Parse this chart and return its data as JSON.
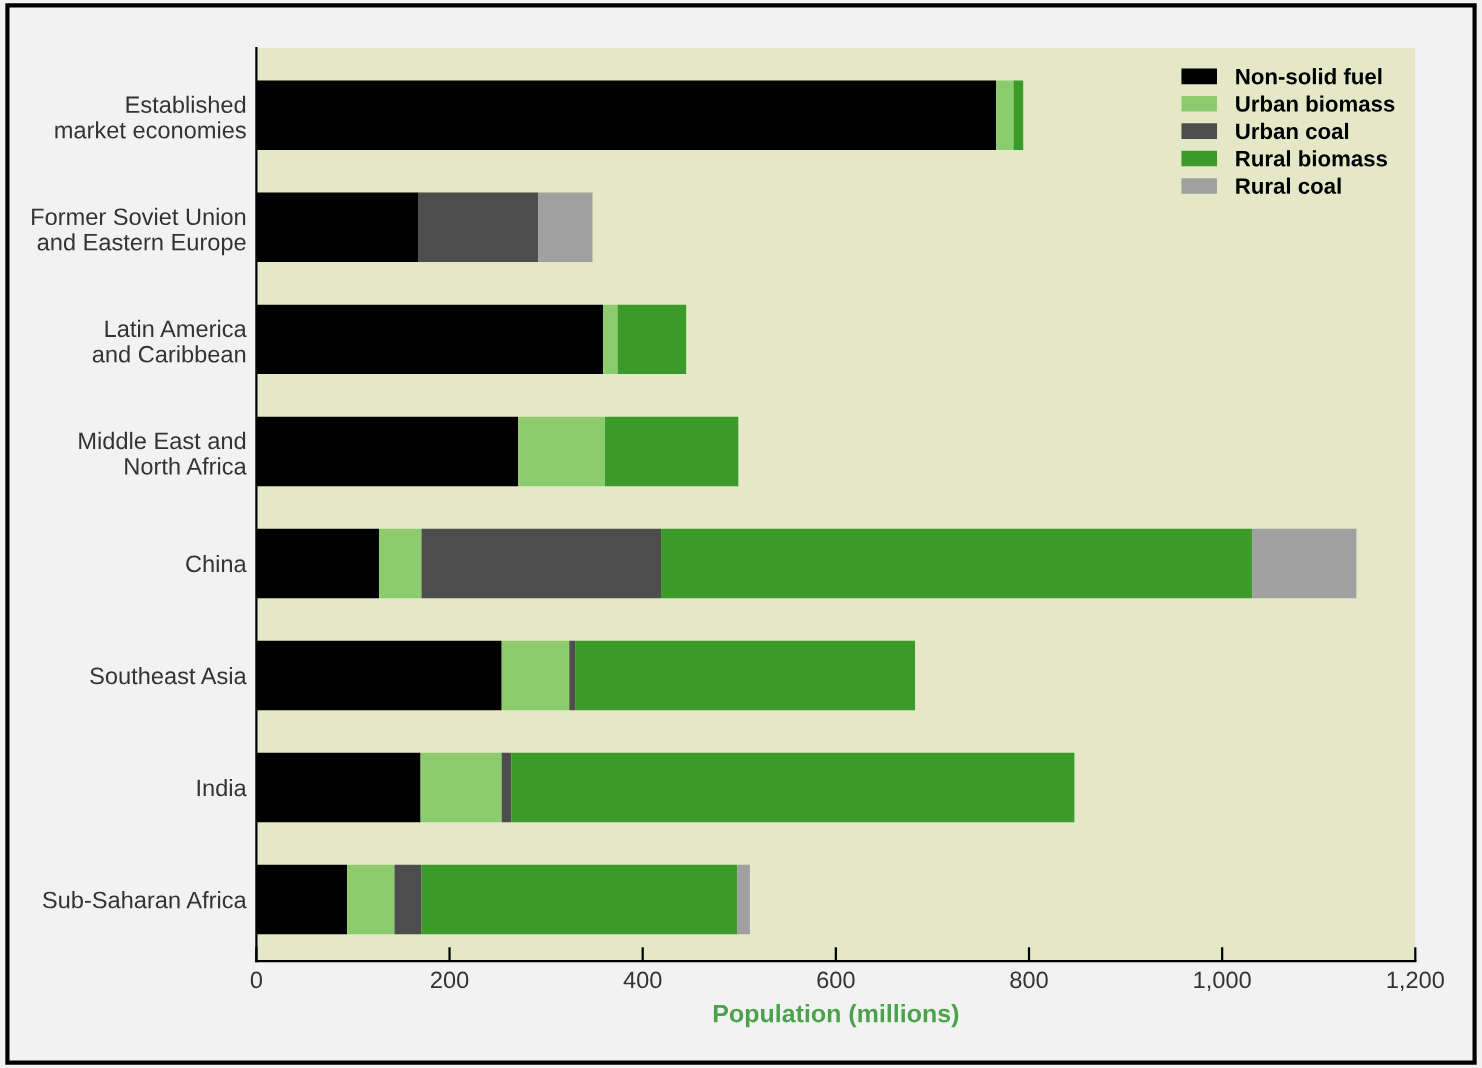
{
  "chart_data": {
    "type": "bar",
    "orientation": "horizontal",
    "stacked": true,
    "xlabel": "Population (millions)",
    "categories": [
      "Established\nmarket economies",
      "Former Soviet Union\nand Eastern Europe",
      "Latin America\nand Caribbean",
      "Middle East and\nNorth Africa",
      "China",
      "Southeast Asia",
      "India",
      "Sub-Saharan Africa"
    ],
    "series": [
      {
        "name": "Non-solid fuel",
        "color": "#000000",
        "values": [
          766,
          168,
          359,
          271,
          127,
          254,
          170,
          94
        ]
      },
      {
        "name": "Urban biomass",
        "color": "#8ccc6e",
        "values": [
          18,
          0,
          15,
          90,
          44,
          70,
          84,
          49
        ]
      },
      {
        "name": "Urban coal",
        "color": "#4d4d4d",
        "values": [
          0,
          124,
          0,
          0,
          248,
          6,
          10,
          28
        ]
      },
      {
        "name": "Rural biomass",
        "color": "#3c9a2a",
        "values": [
          10,
          0,
          71,
          138,
          612,
          352,
          583,
          327
        ]
      },
      {
        "name": "Rural coal",
        "color": "#a0a0a0",
        "values": [
          0,
          56,
          0,
          0,
          108,
          0,
          null,
          13
        ]
      }
    ],
    "xlim": [
      0,
      1200
    ],
    "xticks": [
      0,
      200,
      400,
      600,
      800,
      {
        "value": 1000,
        "label": "1,000"
      },
      {
        "value": 1200,
        "label": "1,200"
      }
    ],
    "grid": false,
    "legend": "top right"
  }
}
